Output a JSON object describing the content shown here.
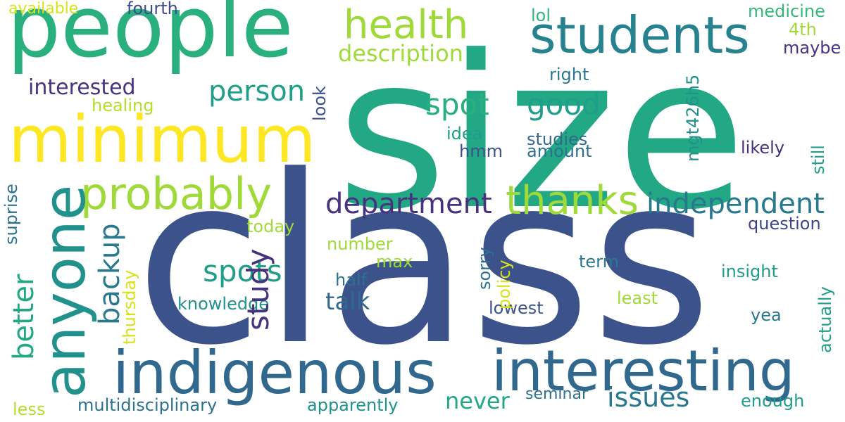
{
  "words": {
    "size": {
      "text": "size",
      "color": "#22a884"
    },
    "class": {
      "text": "class",
      "color": "#3b528b"
    },
    "people": {
      "text": "people",
      "color": "#2ab07f"
    },
    "minimum": {
      "text": "minimum",
      "color": "#fde725"
    },
    "anyone": {
      "text": "anyone",
      "color": "#21918c"
    },
    "indigenous": {
      "text": "indigenous",
      "color": "#31688e"
    },
    "interesting": {
      "text": "interesting",
      "color": "#31688e"
    },
    "students": {
      "text": "students",
      "color": "#26828e"
    },
    "probably": {
      "text": "probably",
      "color": "#a0da39"
    },
    "thanks": {
      "text": "thanks",
      "color": "#a0da39"
    },
    "health": {
      "text": "health",
      "color": "#a0da39"
    },
    "department": {
      "text": "department",
      "color": "#46327e"
    },
    "independent": {
      "text": "independent",
      "color": "#2a788e"
    },
    "spots": {
      "text": "spots",
      "color": "#1f9e89"
    },
    "spot": {
      "text": "spot",
      "color": "#2ab07f"
    },
    "good": {
      "text": "good",
      "color": "#1f9e89"
    },
    "person": {
      "text": "person",
      "color": "#1f9e89"
    },
    "issues": {
      "text": "issues",
      "color": "#2a788e"
    },
    "description": {
      "text": "description",
      "color": "#a0da39"
    },
    "interested": {
      "text": "interested",
      "color": "#46327e"
    },
    "talk": {
      "text": "talk",
      "color": "#31688e"
    },
    "never": {
      "text": "never",
      "color": "#22a884"
    },
    "backup": {
      "text": "backup",
      "color": "#2a788e"
    },
    "better": {
      "text": "better",
      "color": "#22a884"
    },
    "study": {
      "text": "study",
      "color": "#46327e"
    },
    "healing": {
      "text": "healing",
      "color": "#b5de2b"
    },
    "medicine": {
      "text": "medicine",
      "color": "#35b779"
    },
    "4th": {
      "text": "4th",
      "color": "#a0da39"
    },
    "maybe": {
      "text": "maybe",
      "color": "#46327e"
    },
    "lol": {
      "text": "lol",
      "color": "#35b779"
    },
    "right": {
      "text": "right",
      "color": "#2a788e"
    },
    "idea": {
      "text": "idea",
      "color": "#1f9e89"
    },
    "studies": {
      "text": "studies",
      "color": "#31688e"
    },
    "hmm": {
      "text": "hmm",
      "color": "#3b528b"
    },
    "amount": {
      "text": "amount",
      "color": "#2c728e"
    },
    "likely": {
      "text": "likely",
      "color": "#46327e"
    },
    "today": {
      "text": "today",
      "color": "#a0da39"
    },
    "question": {
      "text": "question",
      "color": "#414487"
    },
    "number": {
      "text": "number",
      "color": "#a0da39"
    },
    "max": {
      "text": "max",
      "color": "#a0da39"
    },
    "term": {
      "text": "term",
      "color": "#2a788e"
    },
    "insight": {
      "text": "insight",
      "color": "#1f9e89"
    },
    "half": {
      "text": "half",
      "color": "#2c728e"
    },
    "least": {
      "text": "least",
      "color": "#a0da39"
    },
    "knowledge": {
      "text": "knowledge",
      "color": "#21918c"
    },
    "lowest": {
      "text": "lowest",
      "color": "#3b528b"
    },
    "yea": {
      "text": "yea",
      "color": "#2a788e"
    },
    "seminar": {
      "text": "seminar",
      "color": "#2c728e"
    },
    "enough": {
      "text": "enough",
      "color": "#1f9e89"
    },
    "multidisciplinary": {
      "text": "multidisciplinary",
      "color": "#2c728e"
    },
    "apparently": {
      "text": "apparently",
      "color": "#21918c"
    },
    "less": {
      "text": "less",
      "color": "#b5de2b"
    },
    "available": {
      "text": "available",
      "color": "#d8e219"
    },
    "fourth": {
      "text": "fourth",
      "color": "#3e4a89"
    },
    "look": {
      "text": "look",
      "color": "#3b528b"
    },
    "mgt426h5": {
      "text": "mgt426h5",
      "color": "#21918c"
    },
    "still": {
      "text": "still",
      "color": "#1f9e89"
    },
    "suprise": {
      "text": "suprise",
      "color": "#2c728e"
    },
    "thursday": {
      "text": "thursday",
      "color": "#d8e219"
    },
    "sorry": {
      "text": "sorry",
      "color": "#2c728e"
    },
    "policy": {
      "text": "policy",
      "color": "#d8e219"
    },
    "actually": {
      "text": "actually",
      "color": "#1f9e89"
    }
  }
}
